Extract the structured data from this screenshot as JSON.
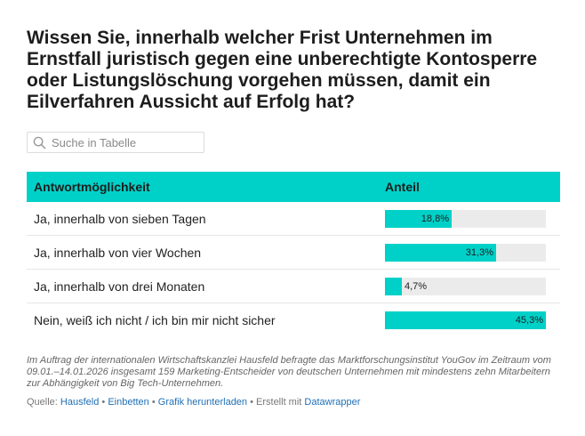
{
  "title": "Wissen Sie, innerhalb welcher Frist Unternehmen im Ernstfall juristisch gegen eine unberechtigte Kontosperre oder Listungslöschung vorgehen müssen, damit ein Eilverfahren Aussicht auf Erfolg hat?",
  "search": {
    "placeholder": "Suche in Tabelle",
    "value": ""
  },
  "colors": {
    "accent": "#00d1c8",
    "bar_track": "#ebebeb",
    "link": "#1f6fb5"
  },
  "chart_data": {
    "type": "table",
    "title": "Wissen Sie, innerhalb welcher Frist Unternehmen im Ernstfall juristisch gegen eine unberechtigte Kontosperre oder Listungslöschung vorgehen müssen, damit ein Eilverfahren Aussicht auf Erfolg hat?",
    "columns": [
      "Antwortmöglichkeit",
      "Anteil"
    ],
    "scale_max": 45.3,
    "rows": [
      {
        "answer": "Ja, innerhalb von sieben Tagen",
        "value": 18.8,
        "label": "18,8%"
      },
      {
        "answer": "Ja, innerhalb von vier Wochen",
        "value": 31.3,
        "label": "31,3%"
      },
      {
        "answer": "Ja, innerhalb von drei Monaten",
        "value": 4.7,
        "label": "4,7%"
      },
      {
        "answer": "Nein, weiß ich nicht / ich bin mir nicht sicher",
        "value": 45.3,
        "label": "45,3%"
      }
    ]
  },
  "notes": "Im Auftrag der internationalen Wirtschaftskanzlei Hausfeld befragte das Marktforschungsinstitut YouGov im Zeitraum vom 09.01.–14.01.2026 insgesamt 159 Marketing-Entscheider von deutschen Unternehmen mit mindestens zehn Mitarbeitern zur Abhängigkeit von Big Tech-Unternehmen.",
  "footer": {
    "source_prefix": "Quelle:",
    "source_link": "Hausfeld",
    "sep1": " • ",
    "embed_link": "Einbetten",
    "sep2": " • ",
    "download_link": "Grafik herunterladen",
    "created_text": " • Erstellt mit ",
    "datawrapper_link": "Datawrapper"
  }
}
